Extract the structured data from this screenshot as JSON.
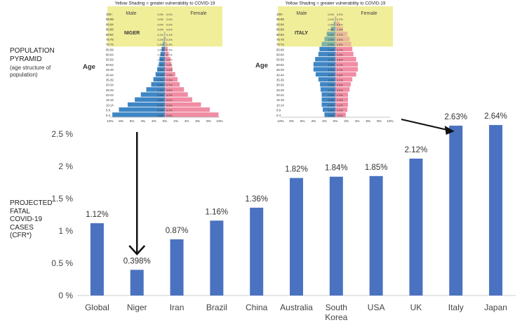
{
  "left_labels": {
    "pyramid_title": "POPULATION\nPYRAMID",
    "pyramid_subtitle": "(age structure of\npopulation)",
    "cfr_label": "PROJECTED\nFATAL\nCOVID-19\nCASES\n(CFR*)"
  },
  "pyramids": [
    {
      "country": "NIGER",
      "shading_note": "Yellow Shading = greater vulnerability to COVID-19",
      "male_label": "Male",
      "female_label": "Female",
      "age_label": "Age",
      "age_groups": [
        "0-4",
        "5-9",
        "10-14",
        "15-19",
        "20-24",
        "25-29",
        "30-34",
        "35-39",
        "40-44",
        "45-49",
        "50-54",
        "55-59",
        "60-64",
        "65-69",
        "70-74",
        "75-79",
        "80-84",
        "85-89",
        "90-94",
        "95-99",
        "100+"
      ],
      "male_pct": [
        9.6,
        8.4,
        6.8,
        5.5,
        4.4,
        3.4,
        2.5,
        2.1,
        1.7,
        1.4,
        1.1,
        1.0,
        0.8,
        0.6,
        0.4,
        0.2,
        0.1,
        0.0,
        0.0,
        0.0,
        0.0
      ],
      "female_pct": [
        9.8,
        8.2,
        6.6,
        5.0,
        4.2,
        3.5,
        2.7,
        2.3,
        1.9,
        1.4,
        1.2,
        1.0,
        0.7,
        0.5,
        0.3,
        0.2,
        0.1,
        0.0,
        0.0,
        0.0,
        0.0
      ],
      "x_ticks": [
        "10%",
        "8%",
        "6%",
        "4%",
        "2%",
        "0%",
        "2%",
        "4%",
        "6%",
        "8%",
        "10%"
      ],
      "xmax_pct": 10
    },
    {
      "country": "ITALY",
      "shading_note": "Yellow Shading = greater vulnerability to COVID-19",
      "male_label": "Male",
      "female_label": "Female",
      "age_label": "Age",
      "age_groups": [
        "0-4",
        "5-9",
        "10-14",
        "15-19",
        "20-24",
        "25-29",
        "30-34",
        "35-39",
        "40-44",
        "45-49",
        "50-54",
        "55-59",
        "60-64",
        "65-69",
        "70-74",
        "75-79",
        "80-84",
        "85-89",
        "90-94",
        "95-99",
        "100+"
      ],
      "male_pct": [
        2.0,
        2.3,
        2.5,
        2.5,
        2.5,
        2.7,
        2.8,
        3.1,
        3.6,
        4.0,
        4.0,
        3.7,
        3.1,
        2.9,
        2.5,
        2.0,
        1.6,
        0.8,
        0.3,
        0.1,
        0.0
      ],
      "female_pct": [
        1.9,
        2.2,
        2.3,
        2.3,
        2.3,
        2.6,
        2.8,
        3.1,
        3.8,
        4.1,
        4.1,
        3.8,
        3.3,
        3.1,
        2.9,
        2.6,
        2.2,
        1.4,
        0.8,
        0.2,
        0.0
      ],
      "x_ticks": [
        "10%",
        "8%",
        "6%",
        "4%",
        "2%",
        "0%",
        "2%",
        "4%",
        "6%",
        "8%",
        "10%"
      ],
      "xmax_pct": 10
    }
  ],
  "chart_data": {
    "type": "bar",
    "categories": [
      "Global",
      "Niger",
      "Iran",
      "Brazil",
      "China",
      "Australia",
      "South\nKorea",
      "USA",
      "UK",
      "Italy",
      "Japan"
    ],
    "values": [
      1.12,
      0.398,
      0.87,
      1.16,
      1.36,
      1.82,
      1.84,
      1.85,
      2.12,
      2.63,
      2.64
    ],
    "value_labels": [
      "1.12%",
      "0.398%",
      "0.87%",
      "1.16%",
      "1.36%",
      "1.82%",
      "1.84%",
      "1.85%",
      "2.12%",
      "2.63%",
      "2.64%"
    ],
    "y_ticks": [
      0,
      0.5,
      1,
      1.5,
      2,
      2.5
    ],
    "y_tick_labels": [
      "0 %",
      "0.5 %",
      "1 %",
      "1.5 %",
      "2 %",
      "2.5 %"
    ],
    "ylim": [
      0,
      2.7
    ],
    "bar_color": "#4a72c0",
    "grid": false
  },
  "colors": {
    "male": "#3f86c4",
    "female": "#f08ca3",
    "shading": "#f1ee9a",
    "arrow": "#111111"
  }
}
